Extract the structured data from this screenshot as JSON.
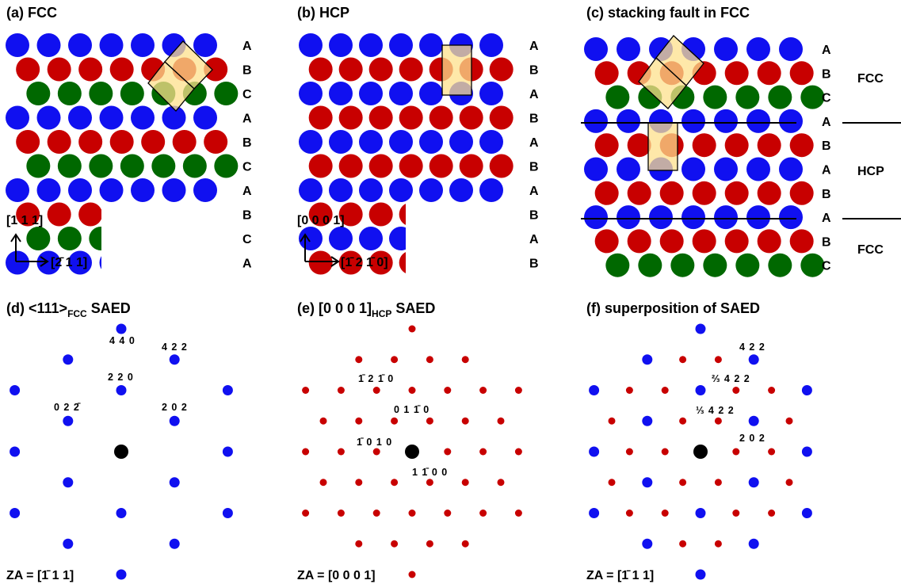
{
  "panels": [
    {
      "title": "(a) FCC",
      "layers": [
        "A",
        "B",
        "C",
        "A",
        "B",
        "C",
        "A",
        "B",
        "C",
        "A"
      ],
      "axis_up": "[1 1 1]",
      "axis_right": "[2̄ 1 1]"
    },
    {
      "title": "(b) HCP",
      "layers": [
        "A",
        "B",
        "A",
        "B",
        "A",
        "B",
        "A",
        "B",
        "A",
        "B"
      ],
      "axis_up": "[0 0 0 1]",
      "axis_right": "[1̄ 2 1̄ 0]"
    },
    {
      "title": "(c) stacking fault in FCC",
      "layers": [
        "A",
        "B",
        "C",
        "A",
        "B",
        "A",
        "B",
        "A",
        "B",
        "C"
      ],
      "regions": [
        "FCC",
        "HCP",
        "FCC"
      ]
    },
    {
      "title_prefix": "(d) <111>",
      "title_sub": "FCC",
      "title_suffix": "SAED",
      "spots": [
        "4 4 0",
        "4 2 2",
        "2 2 0",
        "0 2 2̄",
        "2 0 2"
      ],
      "zone_axis": "ZA = [1̄ 1 1]"
    },
    {
      "title_prefix": "(e) [0 0 0 1]",
      "title_sub": "HCP",
      "title_suffix": "SAED",
      "spots": [
        "1̄ 2 1̄ 0",
        "0 1 1̄ 0",
        "1̄ 0 1 0",
        "1 1̄ 0 0"
      ],
      "zone_axis": "ZA = [0 0 0 1]"
    },
    {
      "title": "(f) superposition of SAED",
      "spots": [
        "4 2 2",
        "⅔ 4 2 2",
        "⅓ 4 2 2",
        "2 0 2"
      ],
      "zone_axis": "ZA = [1̄ 1 1]"
    }
  ]
}
